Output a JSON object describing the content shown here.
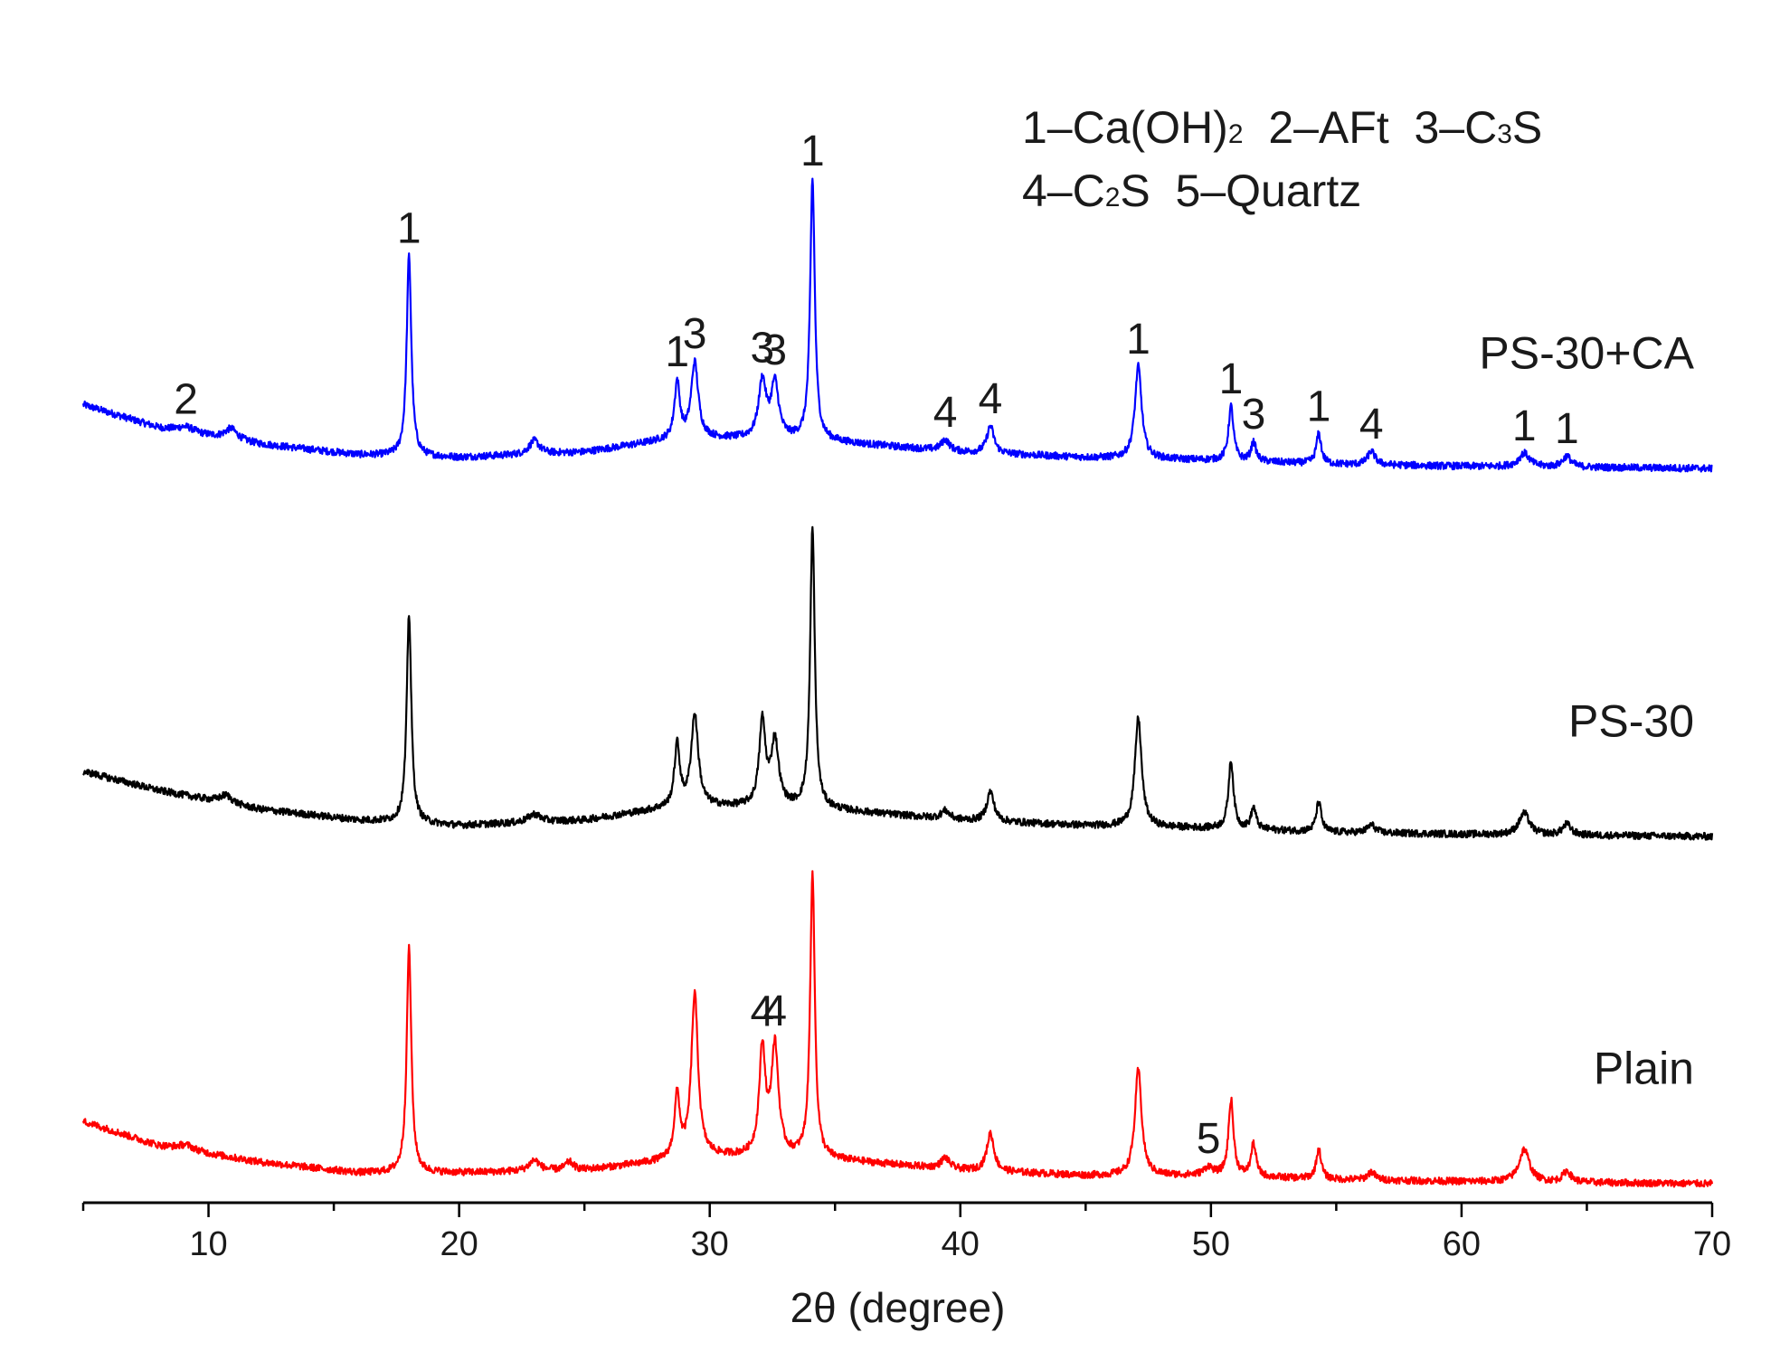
{
  "chart_data": {
    "type": "line",
    "title": "",
    "xlabel": "2θ (degree)",
    "ylabel": "",
    "xlim": [
      5,
      70
    ],
    "x_ticks": [
      10,
      20,
      30,
      40,
      50,
      60,
      70
    ],
    "x_tick_labels": [
      "10",
      "20",
      "30",
      "40",
      "50",
      "60",
      "70"
    ],
    "y_axis_shown": false,
    "grid": false,
    "legend_lines": [
      {
        "parts": [
          {
            "t": "1–Ca(OH)"
          },
          {
            "t": "2",
            "sub": true
          },
          {
            "t": "  2–AFt  3–C"
          },
          {
            "t": "3",
            "sub": true
          },
          {
            "t": "S"
          }
        ]
      },
      {
        "parts": [
          {
            "t": "4–C"
          },
          {
            "t": "2",
            "sub": true
          },
          {
            "t": "S  5–Quartz"
          }
        ]
      }
    ],
    "legend_position": "top-right",
    "series": [
      {
        "name": "PS-30+CA",
        "color": "#0000ff",
        "baseline": [
          [
            5,
            23.5
          ],
          [
            8,
            15
          ],
          [
            12,
            9
          ],
          [
            16,
            5
          ],
          [
            20,
            4
          ],
          [
            25,
            6
          ],
          [
            28,
            10
          ],
          [
            30,
            11
          ],
          [
            34,
            10.5
          ],
          [
            40,
            6
          ],
          [
            45,
            4
          ],
          [
            50,
            3
          ],
          [
            55,
            1.5
          ],
          [
            60,
            0.8
          ],
          [
            65,
            0.4
          ],
          [
            70,
            0
          ]
        ],
        "peaks": [
          {
            "x": 9.1,
            "h": 2,
            "w": 0.4
          },
          {
            "x": 10.9,
            "h": 4,
            "w": 0.3
          },
          {
            "x": 18.0,
            "h": 74,
            "w": 0.11
          },
          {
            "x": 23.0,
            "h": 5,
            "w": 0.25
          },
          {
            "x": 28.7,
            "h": 21,
            "w": 0.13
          },
          {
            "x": 29.4,
            "h": 28,
            "w": 0.17
          },
          {
            "x": 32.1,
            "h": 21,
            "w": 0.18
          },
          {
            "x": 32.6,
            "h": 20,
            "w": 0.18
          },
          {
            "x": 34.1,
            "h": 96,
            "w": 0.11
          },
          {
            "x": 39.4,
            "h": 4,
            "w": 0.2
          },
          {
            "x": 41.2,
            "h": 10,
            "w": 0.17
          },
          {
            "x": 47.1,
            "h": 34,
            "w": 0.16
          },
          {
            "x": 50.8,
            "h": 20,
            "w": 0.12
          },
          {
            "x": 51.7,
            "h": 7,
            "w": 0.12
          },
          {
            "x": 54.3,
            "h": 11,
            "w": 0.12
          },
          {
            "x": 56.4,
            "h": 5,
            "w": 0.18
          },
          {
            "x": 62.5,
            "h": 5,
            "w": 0.25
          },
          {
            "x": 64.2,
            "h": 4,
            "w": 0.2
          }
        ]
      },
      {
        "name": "PS-30",
        "color": "#000000",
        "baseline": [
          [
            5,
            24
          ],
          [
            8,
            17
          ],
          [
            12,
            10
          ],
          [
            16,
            6
          ],
          [
            20,
            4
          ],
          [
            25,
            6
          ],
          [
            28,
            10
          ],
          [
            30,
            11
          ],
          [
            34,
            10.5
          ],
          [
            40,
            6
          ],
          [
            45,
            4
          ],
          [
            50,
            3
          ],
          [
            55,
            1.5
          ],
          [
            60,
            0.8
          ],
          [
            65,
            0.4
          ],
          [
            70,
            0
          ]
        ],
        "peaks": [
          {
            "x": 10.7,
            "h": 3,
            "w": 0.3
          },
          {
            "x": 18.0,
            "h": 77,
            "w": 0.11
          },
          {
            "x": 23.0,
            "h": 3,
            "w": 0.3
          },
          {
            "x": 28.7,
            "h": 23,
            "w": 0.13
          },
          {
            "x": 29.4,
            "h": 34,
            "w": 0.17
          },
          {
            "x": 32.1,
            "h": 31,
            "w": 0.15
          },
          {
            "x": 32.6,
            "h": 24,
            "w": 0.18
          },
          {
            "x": 34.1,
            "h": 103,
            "w": 0.11
          },
          {
            "x": 39.4,
            "h": 3,
            "w": 0.2
          },
          {
            "x": 41.2,
            "h": 11,
            "w": 0.17
          },
          {
            "x": 47.1,
            "h": 40,
            "w": 0.16
          },
          {
            "x": 50.8,
            "h": 25,
            "w": 0.12
          },
          {
            "x": 51.7,
            "h": 8,
            "w": 0.12
          },
          {
            "x": 54.3,
            "h": 11,
            "w": 0.12
          },
          {
            "x": 56.4,
            "h": 3,
            "w": 0.18
          },
          {
            "x": 62.5,
            "h": 8,
            "w": 0.25
          },
          {
            "x": 64.2,
            "h": 4,
            "w": 0.2
          }
        ]
      },
      {
        "name": "Plain",
        "color": "#ff0000",
        "baseline": [
          [
            5,
            23
          ],
          [
            8,
            14
          ],
          [
            12,
            8
          ],
          [
            16,
            4
          ],
          [
            20,
            4
          ],
          [
            25,
            5
          ],
          [
            28,
            8
          ],
          [
            30,
            10
          ],
          [
            34,
            9.5
          ],
          [
            40,
            5
          ],
          [
            45,
            3
          ],
          [
            50,
            3
          ],
          [
            55,
            1.5
          ],
          [
            60,
            0.8
          ],
          [
            65,
            0.4
          ],
          [
            70,
            0
          ]
        ],
        "peaks": [
          {
            "x": 9.1,
            "h": 2,
            "w": 0.4
          },
          {
            "x": 18.0,
            "h": 83,
            "w": 0.11
          },
          {
            "x": 23.0,
            "h": 4,
            "w": 0.25
          },
          {
            "x": 24.4,
            "h": 3,
            "w": 0.2
          },
          {
            "x": 28.7,
            "h": 23,
            "w": 0.13
          },
          {
            "x": 29.4,
            "h": 60,
            "w": 0.16
          },
          {
            "x": 32.1,
            "h": 39,
            "w": 0.15
          },
          {
            "x": 32.6,
            "h": 40,
            "w": 0.17
          },
          {
            "x": 34.1,
            "h": 105,
            "w": 0.11
          },
          {
            "x": 39.4,
            "h": 4,
            "w": 0.2
          },
          {
            "x": 41.2,
            "h": 14,
            "w": 0.17
          },
          {
            "x": 47.1,
            "h": 39,
            "w": 0.16
          },
          {
            "x": 49.9,
            "h": 3,
            "w": 0.2
          },
          {
            "x": 50.8,
            "h": 28,
            "w": 0.12
          },
          {
            "x": 51.7,
            "h": 12,
            "w": 0.12
          },
          {
            "x": 54.3,
            "h": 11,
            "w": 0.12
          },
          {
            "x": 56.4,
            "h": 3,
            "w": 0.18
          },
          {
            "x": 62.5,
            "h": 12,
            "w": 0.25
          },
          {
            "x": 64.2,
            "h": 4,
            "w": 0.2
          }
        ]
      }
    ],
    "peak_labels": [
      {
        "series": 0,
        "text": "2",
        "x": 9.1
      },
      {
        "series": 0,
        "text": "1",
        "x": 18.0
      },
      {
        "series": 0,
        "text": "1",
        "x": 28.7
      },
      {
        "series": 0,
        "text": "3",
        "x": 29.4
      },
      {
        "series": 0,
        "text": "3",
        "x": 32.1
      },
      {
        "series": 0,
        "text": "3",
        "x": 32.6
      },
      {
        "series": 0,
        "text": "1",
        "x": 34.1
      },
      {
        "series": 0,
        "text": "4",
        "x": 39.4
      },
      {
        "series": 0,
        "text": "4",
        "x": 41.2
      },
      {
        "series": 0,
        "text": "1",
        "x": 47.1
      },
      {
        "series": 0,
        "text": "1",
        "x": 50.8
      },
      {
        "series": 0,
        "text": "3",
        "x": 51.7
      },
      {
        "series": 0,
        "text": "1",
        "x": 54.3
      },
      {
        "series": 0,
        "text": "4",
        "x": 56.4
      },
      {
        "series": 0,
        "text": "1",
        "x": 62.5
      },
      {
        "series": 0,
        "text": "1",
        "x": 64.2
      },
      {
        "series": 2,
        "text": "4",
        "x": 32.1
      },
      {
        "series": 2,
        "text": "4",
        "x": 32.6
      },
      {
        "series": 2,
        "text": "5",
        "x": 49.9
      }
    ]
  }
}
